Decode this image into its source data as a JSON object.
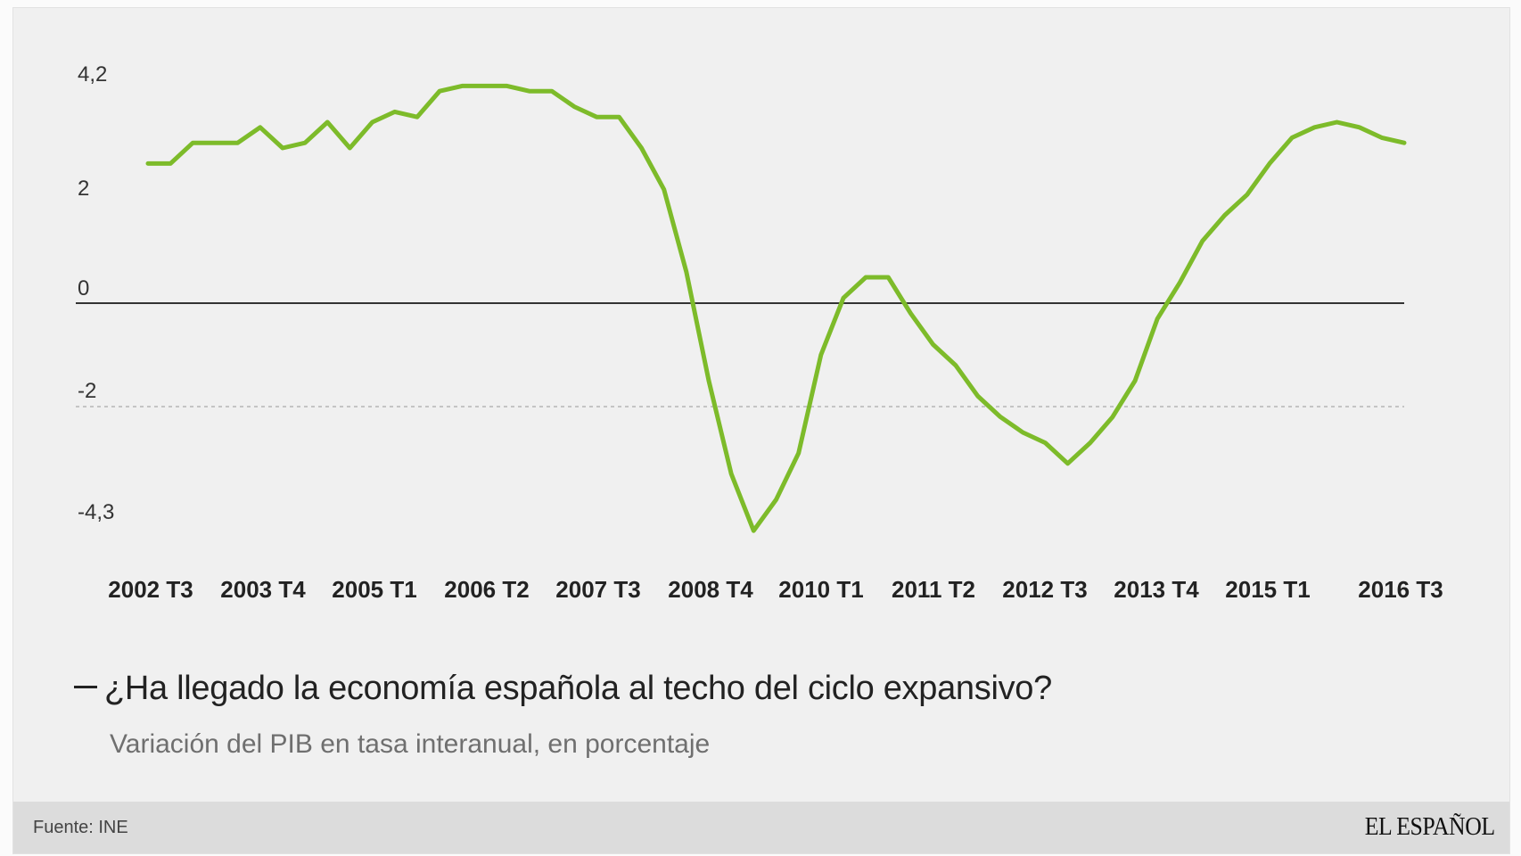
{
  "chart_data": {
    "type": "line",
    "title": "¿Ha llegado la economía española al techo del ciclo expansivo?",
    "subtitle": "Variación del PIB en tasa interanual, en porcentaje",
    "x_tick_labels": [
      "2002 T3",
      "2003 T4",
      "2005 T1",
      "2006 T2",
      "2007 T3",
      "2008 T4",
      "2010 T1",
      "2011 T2",
      "2012 T3",
      "2013 T4",
      "2015 T1",
      "2016 T3"
    ],
    "y_tick_labels": [
      "4,2",
      "2",
      "0",
      "-2",
      "-4,3"
    ],
    "ylim": [
      -4.3,
      4.2
    ],
    "x": [
      "2002 T3",
      "2002 T4",
      "2003 T1",
      "2003 T2",
      "2003 T3",
      "2003 T4",
      "2004 T1",
      "2004 T2",
      "2004 T3",
      "2004 T4",
      "2005 T1",
      "2005 T2",
      "2005 T3",
      "2005 T4",
      "2006 T1",
      "2006 T2",
      "2006 T3",
      "2006 T4",
      "2007 T1",
      "2007 T2",
      "2007 T3",
      "2007 T4",
      "2008 T1",
      "2008 T2",
      "2008 T3",
      "2008 T4",
      "2009 T1",
      "2009 T2",
      "2009 T3",
      "2009 T4",
      "2010 T1",
      "2010 T2",
      "2010 T3",
      "2010 T4",
      "2011 T1",
      "2011 T2",
      "2011 T3",
      "2011 T4",
      "2012 T1",
      "2012 T2",
      "2012 T3",
      "2012 T4",
      "2013 T1",
      "2013 T2",
      "2013 T3",
      "2013 T4",
      "2014 T1",
      "2014 T2",
      "2014 T3",
      "2014 T4",
      "2015 T1",
      "2015 T2",
      "2015 T3",
      "2015 T4",
      "2016 T1",
      "2016 T2",
      "2016 T3"
    ],
    "series": [
      {
        "values": [
          2.7,
          2.7,
          3.1,
          3.1,
          3.1,
          3.4,
          3.0,
          3.1,
          3.5,
          3.0,
          3.5,
          3.7,
          3.6,
          4.1,
          4.2,
          4.2,
          4.2,
          4.1,
          4.1,
          3.8,
          3.6,
          3.6,
          3.0,
          2.2,
          0.6,
          -1.5,
          -3.3,
          -4.4,
          -3.8,
          -2.9,
          -1.0,
          0.1,
          0.5,
          0.5,
          -0.2,
          -0.8,
          -1.2,
          -1.8,
          -2.2,
          -2.5,
          -2.7,
          -3.1,
          -2.7,
          -2.2,
          -1.5,
          -0.3,
          0.4,
          1.2,
          1.7,
          2.1,
          2.7,
          3.2,
          3.4,
          3.5,
          3.4,
          3.2,
          3.1
        ],
        "color": "#7dbb2a"
      }
    ],
    "grid_lines": [
      0,
      -2
    ],
    "legend": "none"
  },
  "footer": {
    "source": "Fuente: INE",
    "brand": "EL ESPAÑOL"
  }
}
